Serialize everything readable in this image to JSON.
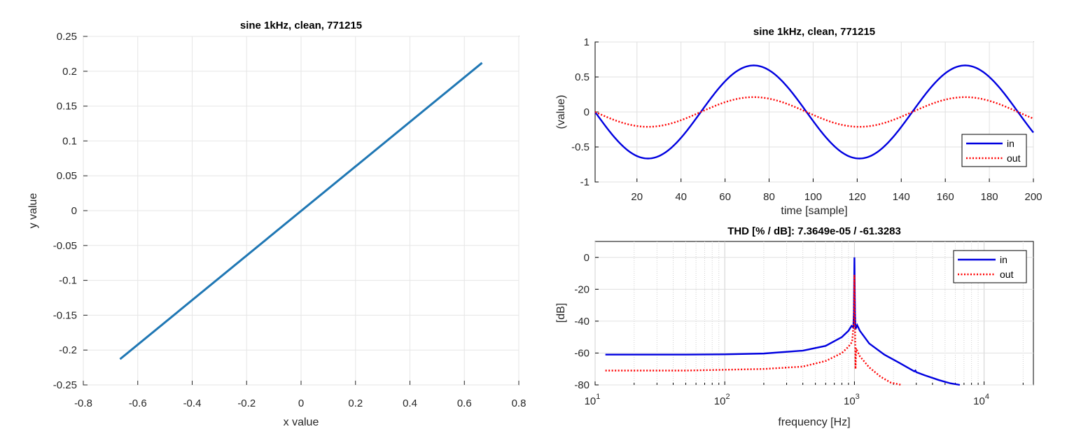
{
  "chart_data": [
    {
      "type": "line",
      "title": "sine 1kHz, clean, 771215",
      "xlabel": "x value",
      "ylabel": "y value",
      "xlim": [
        -0.8,
        0.8
      ],
      "ylim": [
        -0.25,
        0.25
      ],
      "xticks": [
        -0.8,
        -0.6,
        -0.4,
        -0.2,
        0,
        0.2,
        0.4,
        0.6,
        0.8
      ],
      "yticks": [
        -0.25,
        -0.2,
        -0.15,
        -0.1,
        -0.05,
        0,
        0.05,
        0.1,
        0.15,
        0.2,
        0.25
      ],
      "xtick_labels": [
        "-0.8",
        "-0.6",
        "-0.4",
        "-0.2",
        "0",
        "0.2",
        "0.4",
        "0.6",
        "0.8"
      ],
      "ytick_labels": [
        "-0.25",
        "-0.2",
        "-0.15",
        "-0.1",
        "-0.05",
        "0",
        "0.05",
        "0.1",
        "0.15",
        "0.2",
        "0.25"
      ],
      "grid": true,
      "color": "#1f77b4",
      "series": [
        {
          "x": [
            -0.665,
            0.665
          ],
          "y": [
            -0.213,
            0.212
          ]
        }
      ]
    },
    {
      "type": "line",
      "title": "sine 1kHz, clean, 771215",
      "xlabel": "time [sample]",
      "ylabel": "(value)",
      "xlim": [
        1,
        200
      ],
      "ylim": [
        -1,
        1
      ],
      "xticks": [
        20,
        40,
        60,
        80,
        100,
        120,
        140,
        160,
        180,
        200
      ],
      "yticks": [
        -1,
        -0.5,
        0,
        0.5,
        1
      ],
      "xtick_labels": [
        "20",
        "40",
        "60",
        "80",
        "100",
        "120",
        "140",
        "160",
        "180",
        "200"
      ],
      "ytick_labels": [
        "-1",
        "-0.5",
        "0",
        "0.5",
        "1"
      ],
      "grid": true,
      "legend": "bottom-right",
      "period_samples": 96,
      "series": [
        {
          "name": "in",
          "amplitude": 0.665,
          "phase_start": 1,
          "color": "#0000e0",
          "style": "solid"
        },
        {
          "name": "out",
          "amplitude": 0.212,
          "phase_start": 1,
          "color": "#ff0000",
          "style": "dotted"
        }
      ]
    },
    {
      "type": "line",
      "title": "THD [% / dB]:  7.3649e-05 / -61.3283",
      "xlabel": "frequency [Hz]",
      "ylabel": "[dB]",
      "xscale": "log",
      "xlim": [
        10,
        24000
      ],
      "ylim": [
        -80,
        10
      ],
      "xticks": [
        10,
        100,
        1000,
        10000
      ],
      "xtick_labels": [
        {
          "base": "10",
          "exp": "1"
        },
        {
          "base": "10",
          "exp": "2"
        },
        {
          "base": "10",
          "exp": "3"
        },
        {
          "base": "10",
          "exp": "4"
        }
      ],
      "yticks": [
        -80,
        -60,
        -40,
        -20,
        0
      ],
      "ytick_labels": [
        "-80",
        "-60",
        "-40",
        "-20",
        "0"
      ],
      "grid": true,
      "legend": "top-right",
      "series": [
        {
          "name": "in",
          "color": "#0000e0",
          "style": "solid",
          "x": [
            12,
            20,
            50,
            100,
            200,
            400,
            600,
            800,
            900,
            950,
            980,
            990,
            1000,
            1010,
            1020,
            1050,
            1100,
            1300,
            1700,
            2200,
            2900,
            2950,
            3000,
            3500,
            4500,
            5500,
            6500
          ],
          "y": [
            -61,
            -61,
            -61,
            -60.8,
            -60.3,
            -58.5,
            -55.5,
            -50,
            -46,
            -43,
            -44,
            -35,
            0,
            -35,
            -45,
            -42.5,
            -46,
            -54,
            -61,
            -66,
            -71.5,
            -71,
            -72,
            -74,
            -77,
            -79,
            -80
          ]
        },
        {
          "name": "out",
          "color": "#ff0000",
          "style": "dotted",
          "x": [
            12,
            50,
            200,
            400,
            600,
            800,
            900,
            960,
            990,
            1000,
            1010,
            1020,
            1030,
            1100,
            1300,
            1600,
            1900,
            2300
          ],
          "y": [
            -71,
            -71,
            -70,
            -68.5,
            -65,
            -60,
            -56,
            -53,
            -40,
            -11,
            -40,
            -70,
            -57,
            -62,
            -69,
            -75,
            -78.5,
            -80
          ]
        }
      ]
    }
  ]
}
